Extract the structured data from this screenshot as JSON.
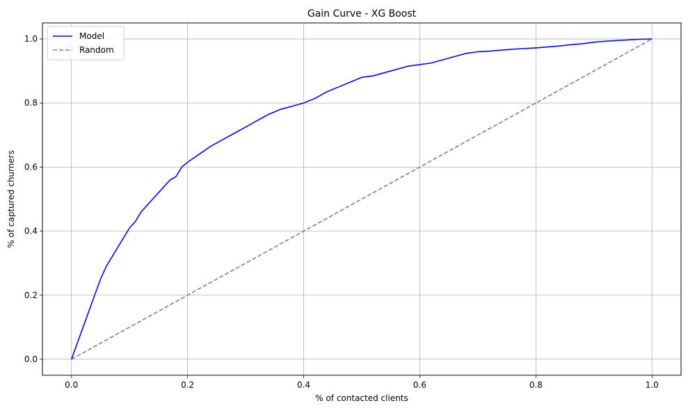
{
  "chart_data": {
    "type": "line",
    "title": "Gain Curve - XG Boost",
    "xlabel": "% of contacted clients",
    "ylabel": "% of captured churners",
    "xlim": [
      -0.05,
      1.05
    ],
    "ylim": [
      -0.05,
      1.05
    ],
    "xticks": [
      "0.0",
      "0.2",
      "0.4",
      "0.6",
      "0.8",
      "1.0"
    ],
    "yticks": [
      "0.0",
      "0.2",
      "0.4",
      "0.6",
      "0.8",
      "1.0"
    ],
    "grid": true,
    "legend_position": "top-left",
    "series": [
      {
        "name": "Model",
        "color": "#0000ff",
        "style": "solid",
        "x": [
          0.0,
          0.01,
          0.02,
          0.03,
          0.04,
          0.05,
          0.06,
          0.07,
          0.08,
          0.09,
          0.1,
          0.11,
          0.12,
          0.13,
          0.14,
          0.15,
          0.16,
          0.17,
          0.18,
          0.19,
          0.2,
          0.22,
          0.24,
          0.26,
          0.28,
          0.3,
          0.32,
          0.34,
          0.36,
          0.38,
          0.4,
          0.42,
          0.44,
          0.46,
          0.48,
          0.5,
          0.52,
          0.54,
          0.56,
          0.58,
          0.6,
          0.62,
          0.64,
          0.66,
          0.68,
          0.7,
          0.72,
          0.74,
          0.76,
          0.78,
          0.8,
          0.82,
          0.84,
          0.86,
          0.88,
          0.9,
          0.92,
          0.94,
          0.96,
          0.98,
          1.0
        ],
        "y": [
          0.0,
          0.05,
          0.1,
          0.15,
          0.2,
          0.25,
          0.29,
          0.32,
          0.35,
          0.38,
          0.41,
          0.43,
          0.46,
          0.48,
          0.5,
          0.52,
          0.54,
          0.56,
          0.57,
          0.6,
          0.615,
          0.64,
          0.665,
          0.685,
          0.705,
          0.725,
          0.745,
          0.765,
          0.78,
          0.79,
          0.8,
          0.815,
          0.835,
          0.85,
          0.865,
          0.88,
          0.885,
          0.895,
          0.905,
          0.915,
          0.92,
          0.925,
          0.935,
          0.945,
          0.955,
          0.96,
          0.962,
          0.965,
          0.968,
          0.97,
          0.972,
          0.975,
          0.978,
          0.982,
          0.985,
          0.99,
          0.993,
          0.995,
          0.997,
          0.999,
          1.0
        ]
      },
      {
        "name": "Random",
        "color": "#808080",
        "style": "dashed",
        "x": [
          0.0,
          1.0
        ],
        "y": [
          0.0,
          1.0
        ]
      }
    ]
  }
}
